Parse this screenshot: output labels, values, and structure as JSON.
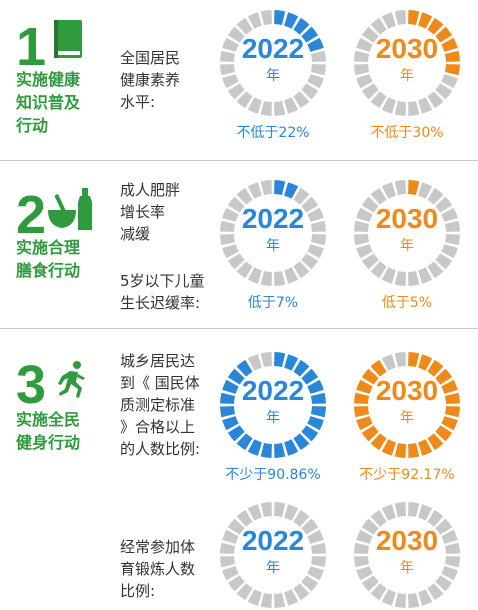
{
  "colors": {
    "green": "#2f9a3e",
    "blue": "#2a86d8",
    "orange": "#ee8a1a",
    "gray": "#c8c8c8"
  },
  "sections": [
    {
      "number": "1",
      "icon": "book-icon",
      "title": "实施健康\n知识普及\n行动",
      "description": "全国居民\n健康素养\n水平:",
      "description2": "",
      "ring2022": {
        "year": "2022",
        "unit": "年",
        "level": 0.22,
        "target": "不低于22%"
      },
      "ring2030": {
        "year": "2030",
        "unit": "年",
        "level": 0.3,
        "target": "不低于30%"
      }
    },
    {
      "number": "2",
      "icon": "mortar-bottle-icon",
      "title": "实施合理\n膳食行动",
      "description": "成人肥胖\n增长率\n减缓",
      "description2": "5岁以下儿童\n生长迟缓率:",
      "ring2022": {
        "year": "2022",
        "unit": "年",
        "level": 0.07,
        "target": "低于7%"
      },
      "ring2030": {
        "year": "2030",
        "unit": "年",
        "level": 0.05,
        "target": "低于5%"
      }
    },
    {
      "number": "3",
      "icon": "running-person-icon",
      "title": "实施全民\n健身行动",
      "description": "城乡居民达\n到《 国民体\n质测定标准\n》合格以上\n的人数比例:",
      "description2": "",
      "ring2022": {
        "year": "2022",
        "unit": "年",
        "level": 0.9086,
        "target": "不少于90.86%"
      },
      "ring2030": {
        "year": "2030",
        "unit": "年",
        "level": 0.9217,
        "target": "不少于92.17%"
      }
    },
    {
      "number": "",
      "icon": "",
      "title": "",
      "description": "经常参加体\n育锻炼人数\n比例:",
      "description2": "",
      "ring2022": {
        "year": "2022",
        "unit": "年",
        "level": 0.0,
        "target": ""
      },
      "ring2030": {
        "year": "2030",
        "unit": "年",
        "level": 0.0,
        "target": ""
      }
    }
  ]
}
